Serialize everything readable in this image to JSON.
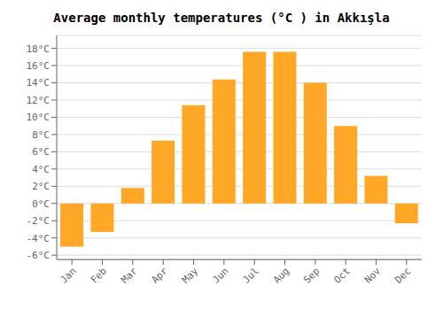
{
  "chart_data": {
    "type": "bar",
    "title": "Average monthly temperatures (°C ) in Akkışla",
    "categories": [
      "Jan",
      "Feb",
      "Mar",
      "Apr",
      "May",
      "Jun",
      "Jul",
      "Aug",
      "Sep",
      "Oct",
      "Nov",
      "Dec"
    ],
    "values": [
      -5.0,
      -3.3,
      1.8,
      7.3,
      11.4,
      14.4,
      17.6,
      17.6,
      14.0,
      9.0,
      3.2,
      -2.3
    ],
    "color": "#FFA726",
    "ylim": [
      -6.5,
      19.5
    ],
    "yticks": [
      {
        "value": -6,
        "label": "-6°C"
      },
      {
        "value": -4,
        "label": "-4°C"
      },
      {
        "value": -2,
        "label": "-2°C"
      },
      {
        "value": 0,
        "label": "0°C"
      },
      {
        "value": 2,
        "label": "2°C"
      },
      {
        "value": 4,
        "label": "4°C"
      },
      {
        "value": 6,
        "label": "6°C"
      },
      {
        "value": 8,
        "label": "8°C"
      },
      {
        "value": 10,
        "label": "10°C"
      },
      {
        "value": 12,
        "label": "12°C"
      },
      {
        "value": 14,
        "label": "14°C"
      },
      {
        "value": 16,
        "label": "16°C"
      },
      {
        "value": 18,
        "label": "18°C"
      }
    ],
    "grid": true
  }
}
